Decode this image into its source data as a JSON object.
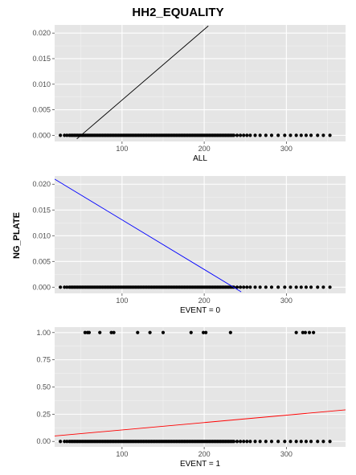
{
  "title": "HH2_EQUALITY",
  "shared_ylabel": "NG_PLATE",
  "chart_data": [
    {
      "type": "scatter",
      "xlabel": "ALL",
      "xlim": [
        18,
        372
      ],
      "ylim": [
        -0.0012,
        0.0216
      ],
      "xticks": [
        100,
        200,
        300
      ],
      "yticks": [
        0.0,
        0.005,
        0.01,
        0.015,
        0.02
      ],
      "ytick_labels": [
        "0.000",
        "0.005",
        "0.010",
        "0.015",
        "0.020"
      ],
      "grid": true,
      "points": {
        "y": 0,
        "x": [
          25,
          30,
          33,
          36,
          38,
          40,
          42,
          44,
          46,
          48,
          50,
          52,
          54,
          56,
          58,
          60,
          62,
          64,
          66,
          68,
          70,
          72,
          74,
          76,
          78,
          80,
          82,
          84,
          86,
          88,
          90,
          92,
          94,
          96,
          98,
          100,
          102,
          104,
          106,
          108,
          110,
          112,
          114,
          116,
          118,
          120,
          122,
          124,
          126,
          128,
          130,
          132,
          134,
          136,
          138,
          140,
          142,
          144,
          146,
          148,
          150,
          152,
          154,
          156,
          158,
          160,
          162,
          164,
          166,
          168,
          170,
          172,
          174,
          176,
          178,
          180,
          182,
          184,
          186,
          188,
          190,
          192,
          194,
          196,
          198,
          200,
          202,
          204,
          206,
          208,
          210,
          212,
          214,
          216,
          218,
          220,
          222,
          224,
          226,
          228,
          230,
          232,
          234,
          236,
          240,
          244,
          248,
          252,
          256,
          262,
          268,
          275,
          282,
          290,
          298,
          305,
          312,
          318,
          324,
          330,
          338,
          345,
          353
        ]
      },
      "fit_line": {
        "color": "#000000",
        "x": [
          45,
          205
        ],
        "y": [
          -0.0007,
          0.0214
        ]
      }
    },
    {
      "type": "scatter",
      "xlabel": "EVENT = 0",
      "xlim": [
        18,
        372
      ],
      "ylim": [
        -0.0012,
        0.0216
      ],
      "xticks": [
        100,
        200,
        300
      ],
      "yticks": [
        0.0,
        0.005,
        0.01,
        0.015,
        0.02
      ],
      "ytick_labels": [
        "0.000",
        "0.005",
        "0.010",
        "0.015",
        "0.020"
      ],
      "grid": true,
      "points": {
        "y": 0,
        "x": [
          25,
          30,
          33,
          36,
          38,
          40,
          42,
          44,
          46,
          48,
          50,
          52,
          54,
          56,
          58,
          60,
          62,
          64,
          66,
          68,
          70,
          72,
          74,
          76,
          78,
          80,
          82,
          84,
          86,
          88,
          90,
          92,
          94,
          96,
          98,
          100,
          102,
          104,
          106,
          108,
          110,
          112,
          114,
          116,
          118,
          120,
          122,
          124,
          126,
          128,
          130,
          132,
          134,
          136,
          138,
          140,
          142,
          144,
          146,
          148,
          150,
          152,
          154,
          156,
          158,
          160,
          162,
          164,
          166,
          168,
          170,
          172,
          174,
          176,
          178,
          180,
          182,
          184,
          186,
          188,
          190,
          192,
          194,
          196,
          198,
          200,
          202,
          204,
          206,
          208,
          210,
          212,
          214,
          216,
          218,
          220,
          222,
          224,
          226,
          228,
          230,
          232,
          234,
          236,
          240,
          244,
          248,
          252,
          256,
          262,
          268,
          275,
          282,
          290,
          298,
          305,
          312,
          318,
          324,
          330,
          338,
          345,
          353
        ]
      },
      "fit_line": {
        "color": "#0000ff",
        "x": [
          18,
          245
        ],
        "y": [
          0.021,
          -0.0009
        ]
      }
    },
    {
      "type": "scatter",
      "xlabel": "EVENT = 1",
      "xlim": [
        18,
        372
      ],
      "ylim": [
        -0.05,
        1.05
      ],
      "xticks": [
        100,
        200,
        300
      ],
      "yticks": [
        0.0,
        0.25,
        0.5,
        0.75,
        1.0
      ],
      "ytick_labels": [
        "0.00",
        "0.25",
        "0.50",
        "0.75",
        "1.00"
      ],
      "grid": true,
      "points_zero": {
        "y": 0,
        "x": [
          25,
          30,
          33,
          36,
          38,
          40,
          42,
          44,
          46,
          48,
          50,
          52,
          54,
          56,
          58,
          60,
          62,
          64,
          66,
          68,
          70,
          72,
          74,
          76,
          78,
          80,
          82,
          84,
          86,
          88,
          90,
          92,
          94,
          96,
          98,
          100,
          102,
          104,
          106,
          108,
          110,
          112,
          114,
          116,
          118,
          120,
          122,
          124,
          126,
          128,
          130,
          132,
          134,
          136,
          138,
          140,
          142,
          144,
          146,
          148,
          150,
          152,
          154,
          156,
          158,
          160,
          162,
          164,
          166,
          168,
          170,
          172,
          174,
          176,
          178,
          180,
          182,
          184,
          186,
          188,
          190,
          192,
          194,
          196,
          198,
          200,
          202,
          204,
          206,
          208,
          210,
          212,
          214,
          216,
          218,
          220,
          222,
          224,
          226,
          228,
          230,
          232,
          234,
          236,
          240,
          244,
          248,
          252,
          256,
          262,
          268,
          275,
          282,
          290,
          298,
          305,
          312,
          318,
          324,
          330,
          338,
          345,
          353
        ]
      },
      "points_one": {
        "y": 1,
        "x": [
          55,
          58,
          60,
          73,
          87,
          90,
          119,
          134,
          150,
          184,
          199,
          202,
          232,
          312,
          320,
          323,
          328,
          333
        ]
      },
      "fit_line": {
        "color": "#ff0000",
        "x": [
          18,
          372
        ],
        "y": [
          0.05,
          0.29
        ]
      }
    }
  ],
  "panel_colors": {
    "background": "#e5e5e5",
    "grid_major": "#ffffff",
    "grid_minor": "#f2f2f2",
    "point": "#000000"
  }
}
